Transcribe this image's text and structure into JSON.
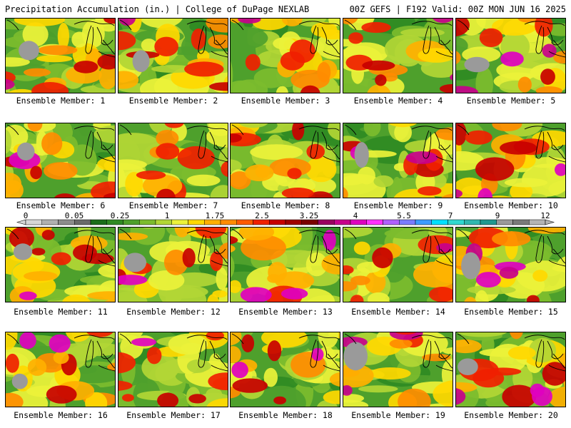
{
  "header": {
    "title_left": "Precipitation Accumulation (in.) | College of DuPage NEXLAB",
    "title_right": "00Z GEFS | F192 Valid: 00Z MON JUN 16 2025"
  },
  "member_label_prefix": "Ensemble Member: ",
  "members": [
    1,
    2,
    3,
    4,
    5,
    6,
    7,
    8,
    9,
    10,
    11,
    12,
    13,
    14,
    15,
    16,
    17,
    18,
    19,
    20
  ],
  "colorbar": {
    "tick_labels": [
      "0",
      "0.05",
      "0.25",
      "1",
      "1.75",
      "2.5",
      "3.25",
      "4",
      "5.5",
      "7",
      "9",
      "12"
    ],
    "colors": [
      "#d6d6d6",
      "#b0b0b0",
      "#8c8c8c",
      "#6a6a6a",
      "#1a6e1a",
      "#2f8a23",
      "#4ea02c",
      "#7cbc2e",
      "#b2d635",
      "#ecf23a",
      "#ffd800",
      "#ffb000",
      "#ff8c00",
      "#ff5a00",
      "#f02000",
      "#c80000",
      "#a00000",
      "#7a0000",
      "#9a0060",
      "#c8008c",
      "#e000c0",
      "#ff30ff",
      "#b060ff",
      "#7a7cff",
      "#3c9cff",
      "#00e0ff",
      "#30d8d0",
      "#30b8b0",
      "#209890",
      "#9a9a9a",
      "#7a7a7a",
      "#b4b4b4"
    ],
    "arrow_color": "#d6d6d6"
  }
}
